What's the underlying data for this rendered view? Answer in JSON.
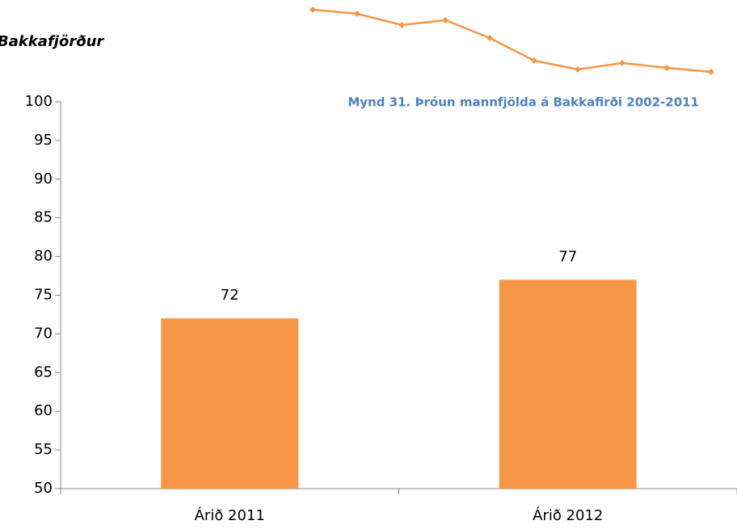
{
  "heading": "Bakkafjörður",
  "caption": "Mynd 31. Þróun mannfjölda á Bakkafirði 2002-2011",
  "chart_data": {
    "type": "bar",
    "categories": [
      "Árið 2011",
      "Árið 2012"
    ],
    "values": [
      72,
      77
    ],
    "color": "#f79646",
    "ylim": [
      50,
      100
    ],
    "yticks": [
      50,
      55,
      60,
      65,
      70,
      75,
      80,
      85,
      90,
      95,
      100
    ]
  }
}
